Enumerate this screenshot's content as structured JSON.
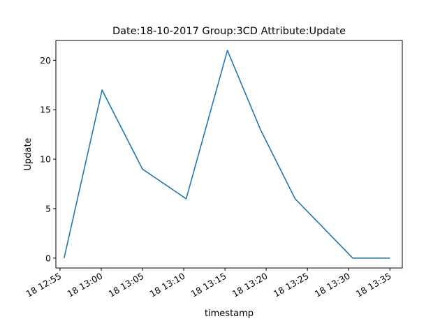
{
  "chart_data": {
    "type": "line",
    "title": "Date:18-10-2017  Group:3CD Attribute:Update",
    "xlabel": "timestamp",
    "ylabel": "Update",
    "x_tick_labels": [
      "18 12:55",
      "18 13:00",
      "18 13:05",
      "18 13:10",
      "18 13:15",
      "18 13:20",
      "18 13:25",
      "18 13:30",
      "18 13:35"
    ],
    "x_tick_times": [
      "12:55",
      "13:00",
      "13:05",
      "13:10",
      "13:15",
      "13:20",
      "13:25",
      "13:30",
      "13:35"
    ],
    "y_ticks": [
      0,
      5,
      10,
      15,
      20
    ],
    "xlim": [
      "12:54.5",
      "13:36.5"
    ],
    "ylim": [
      -1,
      22
    ],
    "grid": false,
    "color": "#1f77b4",
    "series": [
      {
        "x": [
          "12:55.5",
          "13:00.1",
          "13:05.0",
          "13:10.3",
          "13:15.3",
          "13:19.3",
          "13:23.5",
          "13:30.5",
          "13:35.0"
        ],
        "values": [
          0,
          17,
          9,
          6,
          21,
          13,
          6,
          0,
          0
        ]
      }
    ]
  }
}
